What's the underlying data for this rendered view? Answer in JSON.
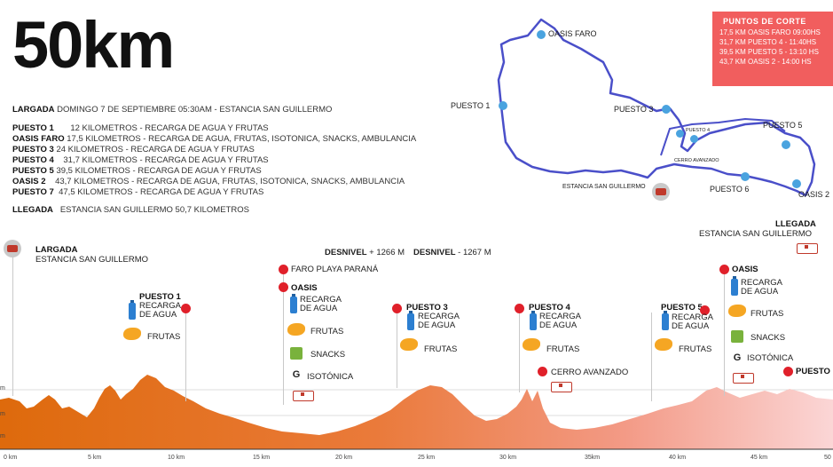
{
  "title": "50km",
  "largada": {
    "label": "LARGADA",
    "text": "DOMINGO 7 DE SEPTIEMBRE 05:30AM - ESTANCIA SAN GUILLERMO"
  },
  "stations": [
    {
      "label": "PUESTO 1",
      "text": "12 KILOMETROS - RECARGA DE AGUA Y FRUTAS"
    },
    {
      "label": "OASIS FARO",
      "text": "17,5 KILOMETROS - RECARGA DE AGUA, FRUTAS, ISOTONICA, SNACKS, AMBULANCIA"
    },
    {
      "label": "PUESTO 3",
      "text": "24 KILOMETROS - RECARGA DE AGUA Y FRUTAS"
    },
    {
      "label": "PUESTO 4",
      "text": "31,7 KILOMETROS - RECARGA DE AGUA Y FRUTAS"
    },
    {
      "label": "PUESTO 5",
      "text": "39,5 KILOMETROS - RECARGA DE AGUA Y FRUTAS"
    },
    {
      "label": "OASIS 2",
      "text": "43,7 KILOMETROS - RECARGA DE AGUA, FRUTAS, ISOTONICA, SNACKS, AMBULANCIA"
    },
    {
      "label": "PUESTO 7",
      "text": "47,5 KILOMETROS - RECARGA DE AGUA Y FRUTAS"
    }
  ],
  "llegada": {
    "label": "LLEGADA",
    "text": "ESTANCIA SAN GUILLERMO 50,7 KILOMETROS"
  },
  "puntos_corte": {
    "title": "PUNTOS DE CORTE",
    "rows": [
      "17,5 KM OASIS FARO 09:00HS",
      "31,7 KM PUESTO 4 - 11:40HS",
      "39,5 KM PUESTO 5 - 13:10 HS",
      "43,7 KM OASIS 2 - 14:00 HS"
    ]
  },
  "map": {
    "oasis_faro": "OASIS FARO",
    "puesto1": "PUESTO 1",
    "puesto3": "PUESTO 3",
    "puesto4": "PUESTO 4",
    "cerro": "CERRO AVANZADO",
    "puesto5": "PUESTO 5",
    "puesto6": "PUESTO 6",
    "oasis2": "OASIS 2",
    "estancia": "ESTANCIA SAN GUILLERMO"
  },
  "profile": {
    "start_label": "LARGADA",
    "start_sub": "ESTANCIA SAN GUILLERMO",
    "finish_label": "LLEGADA",
    "finish_sub": "ESTANCIA SAN GUILLERMO",
    "desnivel1_label": "DESNIVEL",
    "desnivel1_value": "+ 1266 M",
    "desnivel2_label": "DESNIVEL",
    "desnivel2_value": "- 1267 M",
    "puesto1": "PUESTO 1",
    "faro": "FARO PLAYA PARANÁ",
    "oasis": "OASIS",
    "puesto3": "PUESTO 3",
    "puesto4": "PUESTO 4",
    "cerro": "CERRO AVANZADO",
    "puesto5": "PUESTO 5",
    "oasis2": "OASIS",
    "puesto_last": "PUESTO",
    "recarga": "RECARGA DE AGUA",
    "frutas": "FRUTAS",
    "snacks": "SNACKS",
    "isotonica": "ISOTÓNICA",
    "ticks": [
      "0 km",
      "5 km",
      "10 km",
      "15 km",
      "20 km",
      "25 km",
      "30 km",
      "35km",
      "40 km",
      "45 km",
      "50"
    ],
    "yticks": [
      "m",
      "m",
      "m"
    ]
  }
}
